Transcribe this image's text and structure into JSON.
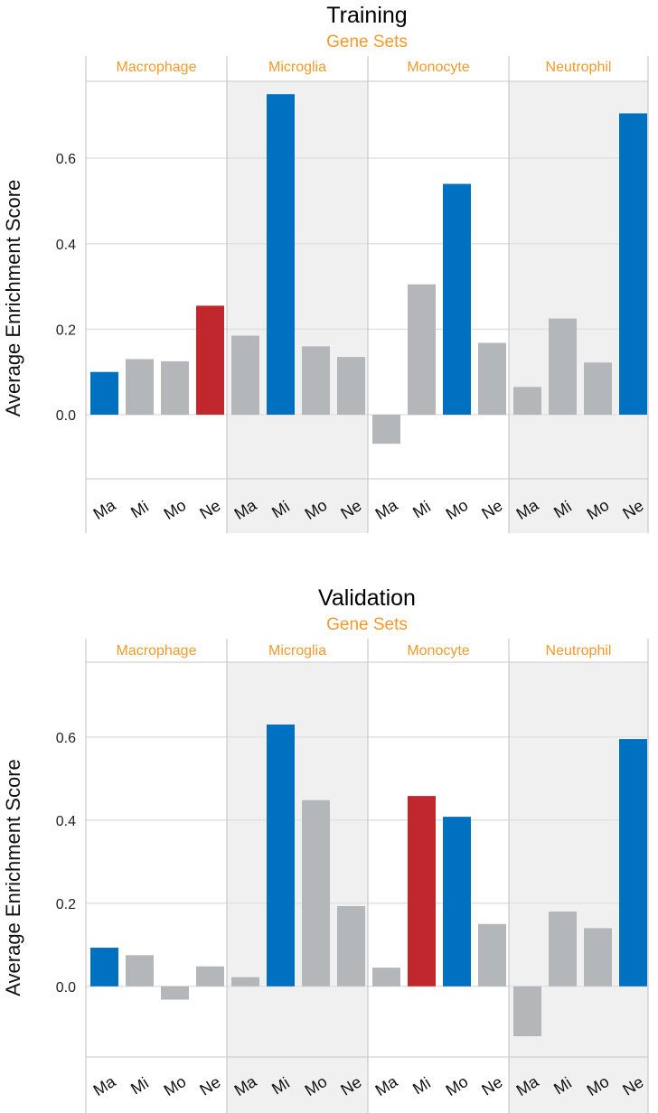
{
  "colors": {
    "highlight_blue": "#0070c0",
    "highlight_red": "#c0282e",
    "neutral_bar": "#b3b7b9",
    "facet_label": "#f39a2b",
    "shaded_panel": "#f0f0f0",
    "grid": "#e2e2e2",
    "divider": "#c8c8c8"
  },
  "chart_data": [
    {
      "type": "bar",
      "title": "Training",
      "subtitle": "Gene Sets",
      "ylabel": "Average Enrichment Score",
      "ylim": [
        -0.15,
        0.78
      ],
      "yticks": [
        "0.0",
        "0.2",
        "0.4",
        "0.6"
      ],
      "grid": true,
      "facets": [
        {
          "label": "Macrophage",
          "shaded": false,
          "categories": [
            "Ma",
            "Mi",
            "Mo",
            "Ne"
          ],
          "values": [
            0.1,
            0.13,
            0.125,
            0.255
          ],
          "colors": [
            "blue",
            "gray",
            "gray",
            "red"
          ]
        },
        {
          "label": "Microglia",
          "shaded": true,
          "categories": [
            "Ma",
            "Mi",
            "Mo",
            "Ne"
          ],
          "values": [
            0.185,
            0.75,
            0.16,
            0.135
          ],
          "colors": [
            "gray",
            "blue",
            "gray",
            "gray"
          ]
        },
        {
          "label": "Monocyte",
          "shaded": false,
          "categories": [
            "Ma",
            "Mi",
            "Mo",
            "Ne"
          ],
          "values": [
            -0.068,
            0.305,
            0.54,
            0.168
          ],
          "colors": [
            "gray",
            "gray",
            "blue",
            "gray"
          ]
        },
        {
          "label": "Neutrophil",
          "shaded": true,
          "categories": [
            "Ma",
            "Mi",
            "Mo",
            "Ne"
          ],
          "values": [
            0.065,
            0.225,
            0.122,
            0.705
          ],
          "colors": [
            "gray",
            "gray",
            "gray",
            "blue"
          ]
        }
      ]
    },
    {
      "type": "bar",
      "title": "Validation",
      "subtitle": "Gene Sets",
      "ylabel": "Average Enrichment Score",
      "ylim": [
        -0.17,
        0.78
      ],
      "yticks": [
        "0.0",
        "0.2",
        "0.4",
        "0.6"
      ],
      "grid": true,
      "facets": [
        {
          "label": "Macrophage",
          "shaded": false,
          "categories": [
            "Ma",
            "Mi",
            "Mo",
            "Ne"
          ],
          "values": [
            0.093,
            0.075,
            -0.032,
            0.048
          ],
          "colors": [
            "blue",
            "gray",
            "gray",
            "gray"
          ]
        },
        {
          "label": "Microglia",
          "shaded": true,
          "categories": [
            "Ma",
            "Mi",
            "Mo",
            "Ne"
          ],
          "values": [
            0.022,
            0.63,
            0.448,
            0.193
          ],
          "colors": [
            "gray",
            "blue",
            "gray",
            "gray"
          ]
        },
        {
          "label": "Monocyte",
          "shaded": false,
          "categories": [
            "Ma",
            "Mi",
            "Mo",
            "Ne"
          ],
          "values": [
            0.045,
            0.458,
            0.408,
            0.15
          ],
          "colors": [
            "gray",
            "red",
            "blue",
            "gray"
          ]
        },
        {
          "label": "Neutrophil",
          "shaded": true,
          "categories": [
            "Ma",
            "Mi",
            "Mo",
            "Ne"
          ],
          "values": [
            -0.12,
            0.18,
            0.14,
            0.595
          ],
          "colors": [
            "gray",
            "gray",
            "gray",
            "blue"
          ]
        }
      ]
    }
  ]
}
